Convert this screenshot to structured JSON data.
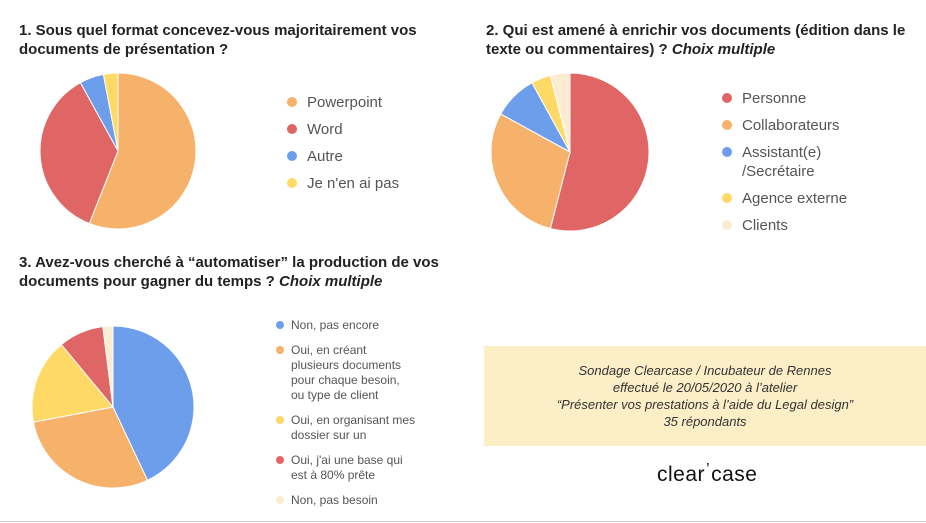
{
  "chart_data": [
    {
      "type": "pie",
      "title": "1. Sous quel format concevez-vous majoritairement vos documents de présentation ?",
      "title_lines": [
        "1. Sous quel format concevez-vous majoritairement vos",
        "documents de présentation ?"
      ],
      "title_suffix": "",
      "legend_position": "right",
      "slices": [
        {
          "label": "Powerpoint",
          "value": 56,
          "color": "#f6b26b"
        },
        {
          "label": "Word",
          "value": 36,
          "color": "#e06666"
        },
        {
          "label": "Autre",
          "value": 5,
          "color": "#6d9eeb"
        },
        {
          "label": "Je n'en ai pas",
          "value": 3,
          "color": "#ffd966"
        }
      ]
    },
    {
      "type": "pie",
      "title": "2. Qui est amené à enrichir vos documents (édition dans le texte ou commentaires) ? Choix multiple",
      "title_lines": [
        "2. Qui est amené à enrichir vos documents (édition dans le",
        "texte ou commentaires) ?"
      ],
      "title_suffix": "Choix multiple",
      "legend_position": "right",
      "slices": [
        {
          "label": "Personne",
          "value": 54,
          "color": "#e06666"
        },
        {
          "label": "Collaborateurs",
          "value": 29,
          "color": "#f6b26b"
        },
        {
          "label": "Assistant(e) /Secrétaire",
          "value": 9,
          "color": "#6d9eeb"
        },
        {
          "label": "Agence externe",
          "value": 4,
          "color": "#ffd966"
        },
        {
          "label": "Clients",
          "value": 4,
          "color": "#fcecd2"
        }
      ]
    },
    {
      "type": "pie",
      "title": "3. Avez-vous cherché à “automatiser” la production de vos documents pour gagner du temps ? Choix multiple",
      "title_lines": [
        "3. Avez-vous cherché à “automatiser” la production de vos",
        "documents pour gagner du temps ?"
      ],
      "title_suffix": "Choix multiple",
      "legend_position": "right",
      "slices": [
        {
          "label": "Non, pas encore",
          "value": 43,
          "color": "#6d9eeb"
        },
        {
          "label": "Oui, en créant plusieurs documents pour chaque besoin, ou type de client",
          "value": 29,
          "color": "#f6b26b"
        },
        {
          "label": "Oui, en organisant mes dossier sur un",
          "value": 17,
          "color": "#ffd966"
        },
        {
          "label": "Oui, j'ai une base qui est à 80% prête",
          "value": 9,
          "color": "#e06666"
        },
        {
          "label": "Non, pas besoin",
          "value": 2,
          "color": "#fcecd2"
        }
      ]
    }
  ],
  "legend_lines": {
    "chart2": [
      [
        "Personne"
      ],
      [
        "Collaborateurs"
      ],
      [
        "Assistant(e)",
        "/Secrétaire"
      ],
      [
        "Agence externe"
      ],
      [
        "Clients"
      ]
    ],
    "chart3": [
      [
        "Non, pas encore"
      ],
      [
        "Oui, en créant",
        "plusieurs documents",
        "pour chaque besoin,",
        "ou type de client"
      ],
      [
        "Oui, en organisant mes",
        "dossier sur un"
      ],
      [
        "Oui, j'ai une base qui",
        "est à 80% prête"
      ],
      [
        "Non, pas besoin"
      ]
    ]
  },
  "note": {
    "lines": [
      "Sondage Clearcase / Incubateur de Rennes",
      "effectué le 20/05/2020 à l’atelier",
      "“Présenter vos prestations à l’aide du Legal design”",
      "35 répondants"
    ]
  },
  "logo": {
    "part1": "clear",
    "apostrophe": "’",
    "part2": "case"
  }
}
